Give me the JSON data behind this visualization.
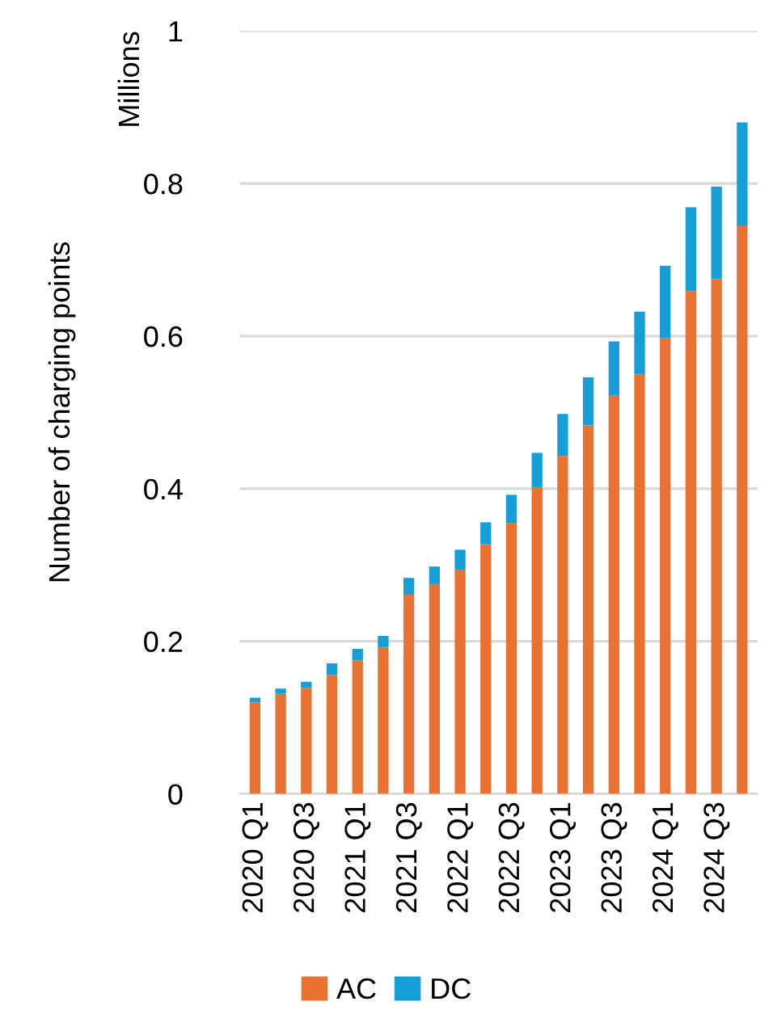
{
  "chart_data": {
    "type": "bar",
    "stacked": true,
    "ylabel": "Number of charging points",
    "annotations": [
      "Millions"
    ],
    "categories": [
      "2020 Q1",
      null,
      "2020 Q3",
      null,
      "2021 Q1",
      null,
      "2021 Q3",
      null,
      "2022 Q1",
      null,
      "2022 Q3",
      null,
      "2023 Q1",
      null,
      "2023 Q3",
      null,
      "2024 Q1",
      null,
      "2024 Q3",
      null
    ],
    "series": [
      {
        "name": "AC",
        "color": "#e97132",
        "values": [
          0.12,
          0.131,
          0.139,
          0.156,
          0.175,
          0.192,
          0.261,
          0.275,
          0.294,
          0.327,
          0.355,
          0.402,
          0.443,
          0.483,
          0.522,
          0.55,
          0.597,
          0.659,
          0.675,
          0.745
        ]
      },
      {
        "name": "DC",
        "color": "#159fd6",
        "values": [
          0.006,
          0.007,
          0.008,
          0.015,
          0.015,
          0.015,
          0.022,
          0.023,
          0.026,
          0.029,
          0.037,
          0.045,
          0.055,
          0.063,
          0.071,
          0.082,
          0.095,
          0.11,
          0.121,
          0.135
        ]
      }
    ],
    "ylim": [
      0,
      1
    ],
    "yticks": [
      0,
      0.2,
      0.4,
      0.6,
      0.8,
      1
    ],
    "grid": "y",
    "legend": "bottom"
  }
}
